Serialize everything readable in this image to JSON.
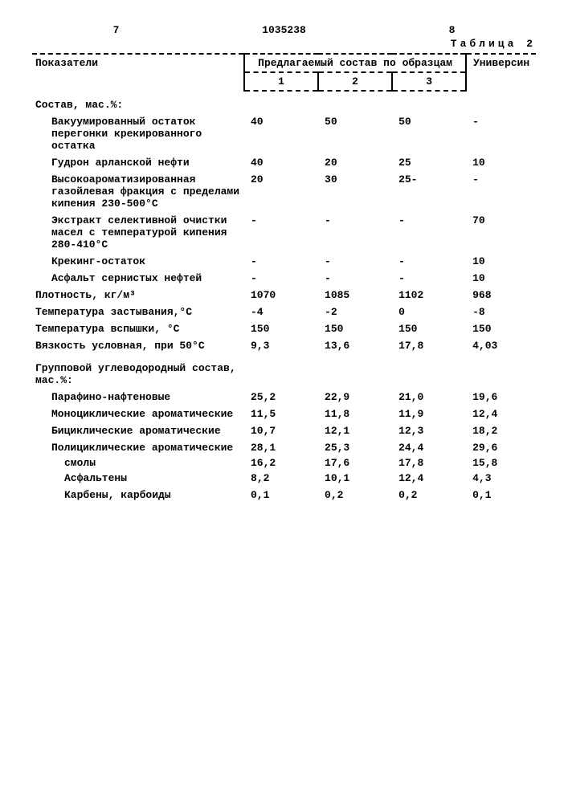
{
  "header": {
    "left_page": "7",
    "doc_number": "1035238",
    "right_page": "8",
    "table_label": "Таблица 2"
  },
  "columns": {
    "indicator": "Показатели",
    "proposed": "Предлагаемый состав по образцам",
    "c1": "1",
    "c2": "2",
    "c3": "3",
    "universin": "Универсин"
  },
  "rows": [
    {
      "label": "Состав, мас.%:",
      "v": [
        "",
        "",
        "",
        ""
      ],
      "cls": "section"
    },
    {
      "label": "Вакуумированный остаток перегонки крекированного остатка",
      "v": [
        "40",
        "50",
        "50",
        "-"
      ],
      "cls": "indent1"
    },
    {
      "label": "Гудрон арланской нефти",
      "v": [
        "40",
        "20",
        "25",
        "10"
      ],
      "cls": "indent1"
    },
    {
      "label": "Высокоароматизированная газойлевая фракция с пределами кипения 230-500°C",
      "v": [
        "20",
        "30",
        "25-",
        "-"
      ],
      "cls": "indent1"
    },
    {
      "label": "Экстракт селективной очистки масел с температурой кипения 280-410°C",
      "v": [
        "-",
        "-",
        "-",
        "70"
      ],
      "cls": "indent1"
    },
    {
      "label": "Крекинг-остаток",
      "v": [
        "-",
        "-",
        "-",
        "10"
      ],
      "cls": "indent1"
    },
    {
      "label": "Асфальт сернистых нефтей",
      "v": [
        "-",
        "-",
        "-",
        "10"
      ],
      "cls": "indent1"
    },
    {
      "label": "Плотность, кг/м³",
      "v": [
        "1070",
        "1085",
        "1102",
        "968"
      ],
      "cls": ""
    },
    {
      "label": "Температура застывания,°С",
      "v": [
        "-4",
        "-2",
        "0",
        "-8"
      ],
      "cls": ""
    },
    {
      "label": "Температура вспышки, °С",
      "v": [
        "150",
        "150",
        "150",
        "150"
      ],
      "cls": ""
    },
    {
      "label": "Вязкость условная, при 50°С",
      "v": [
        "9,3",
        "13,6",
        "17,8",
        "4,03"
      ],
      "cls": ""
    },
    {
      "label": "Групповой углеводородный состав, мас.%:",
      "v": [
        "",
        "",
        "",
        ""
      ],
      "cls": "section"
    },
    {
      "label": "Парафино-нафтеновые",
      "v": [
        "25,2",
        "22,9",
        "21,0",
        "19,6"
      ],
      "cls": "indent1"
    },
    {
      "label": "Моноциклические ароматические",
      "v": [
        "11,5",
        "11,8",
        "11,9",
        "12,4"
      ],
      "cls": "indent1"
    },
    {
      "label": "Бициклические ароматические",
      "v": [
        "10,7",
        "12,1",
        "12,3",
        "18,2"
      ],
      "cls": "indent1"
    },
    {
      "label": "Полициклические ароматические",
      "v": [
        "28,1",
        "25,3",
        "24,4",
        "29,6"
      ],
      "cls": "indent1"
    },
    {
      "label": "смолы",
      "v": [
        "16,2",
        "17,6",
        "17,8",
        "15,8"
      ],
      "cls": "indent2 tight"
    },
    {
      "label": "Асфальтены",
      "v": [
        "8,2",
        "10,1",
        "12,4",
        "4,3"
      ],
      "cls": "indent2"
    },
    {
      "label": "Карбены, карбоиды",
      "v": [
        "0,1",
        "0,2",
        "0,2",
        "0,1"
      ],
      "cls": "indent2"
    }
  ]
}
